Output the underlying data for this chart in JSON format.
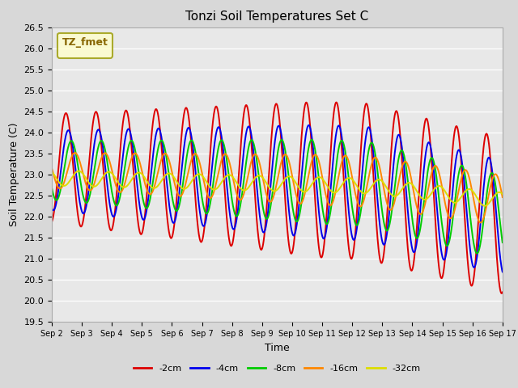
{
  "title": "Tonzi Soil Temperatures Set C",
  "xlabel": "Time",
  "ylabel": "Soil Temperature (C)",
  "ylim": [
    19.5,
    26.5
  ],
  "background_color": "#d8d8d8",
  "plot_bg_color": "#e8e8e8",
  "legend_label": "TZ_fmet",
  "legend_box_color": "#ffffcc",
  "legend_border_color": "#999900",
  "series": [
    {
      "label": "-2cm",
      "color": "#dd0000",
      "linewidth": 1.4
    },
    {
      "label": "-4cm",
      "color": "#0000ee",
      "linewidth": 1.4
    },
    {
      "label": "-8cm",
      "color": "#00cc00",
      "linewidth": 1.4
    },
    {
      "label": "-16cm",
      "color": "#ff8800",
      "linewidth": 1.4
    },
    {
      "label": "-32cm",
      "color": "#dddd00",
      "linewidth": 1.4
    }
  ],
  "yticks": [
    19.5,
    20.0,
    20.5,
    21.0,
    21.5,
    22.0,
    22.5,
    23.0,
    23.5,
    24.0,
    24.5,
    25.0,
    25.5,
    26.0,
    26.5
  ],
  "x_tick_labels": [
    "Sep 2",
    "Sep 3",
    "Sep 4",
    "Sep 5",
    "Sep 6",
    "Sep 7",
    "Sep 8",
    "Sep 9",
    "Sep 10",
    "Sep 11",
    "Sep 12",
    "Sep 13",
    "Sep 14",
    "Sep 15",
    "Sep 16",
    "Sep 17"
  ],
  "legend_items": [
    {
      "label": "-2cm",
      "color": "#dd0000"
    },
    {
      "label": "-4cm",
      "color": "#0000ee"
    },
    {
      "label": "-8cm",
      "color": "#00cc00"
    },
    {
      "label": "-16cm",
      "color": "#ff8800"
    },
    {
      "label": "-32cm",
      "color": "#dddd00"
    }
  ]
}
